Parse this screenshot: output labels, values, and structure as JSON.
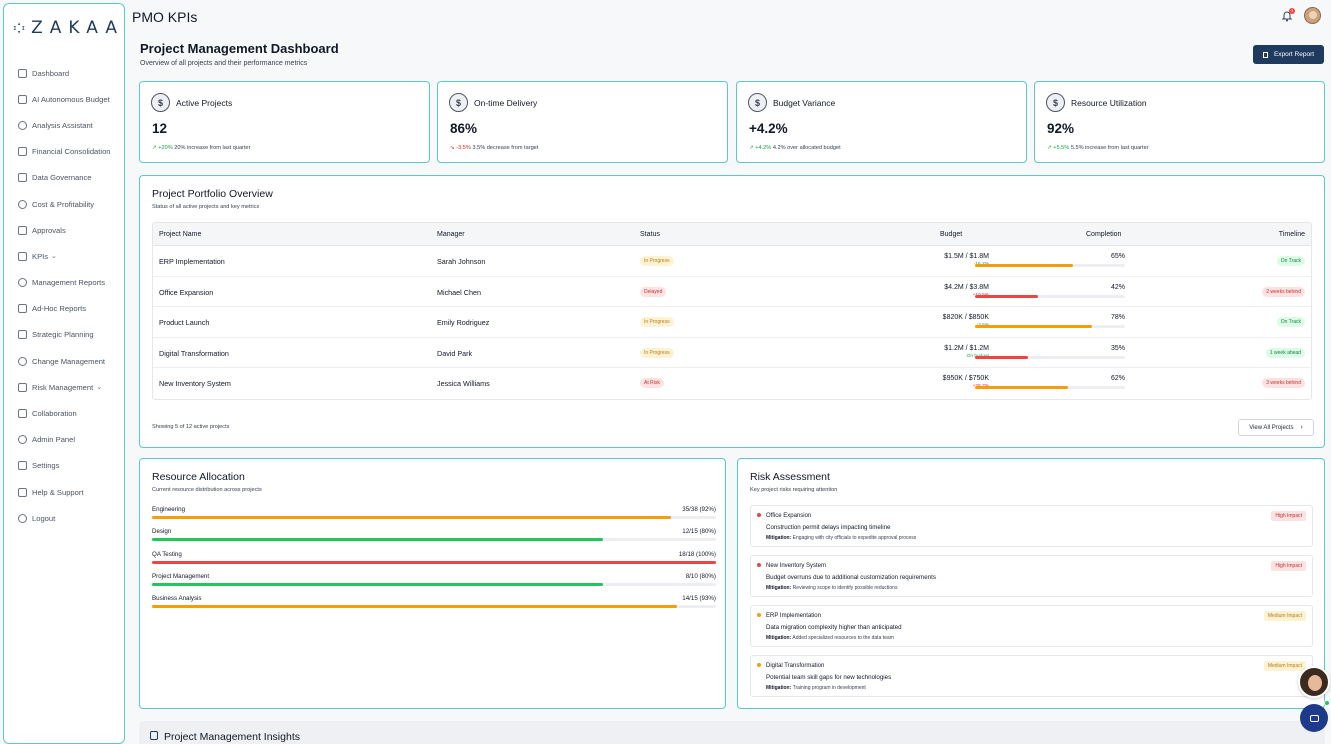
{
  "sidebar": {
    "brand": "ZAKAA",
    "items": [
      {
        "label": "Dashboard",
        "icon": "home-icon"
      },
      {
        "label": "AI Autonomous Budget",
        "icon": "robot-icon"
      },
      {
        "label": "Analysis Assistant",
        "icon": "assistant-icon"
      },
      {
        "label": "Financial Consolidation",
        "icon": "layers-icon"
      },
      {
        "label": "Data Governance",
        "icon": "database-icon"
      },
      {
        "label": "Cost & Profitability",
        "icon": "chart-icon"
      },
      {
        "label": "Approvals",
        "icon": "approval-icon"
      },
      {
        "label": "KPIs",
        "icon": "kpi-icon",
        "chevron": "⌄"
      },
      {
        "label": "Management Reports",
        "icon": "report-icon"
      },
      {
        "label": "Ad-Hoc Reports",
        "icon": "file-icon"
      },
      {
        "label": "Strategic Planning",
        "icon": "target-icon"
      },
      {
        "label": "Change Management",
        "icon": "users-icon"
      },
      {
        "label": "Risk Management",
        "icon": "shield-icon",
        "chevron": "⌄"
      },
      {
        "label": "Collaboration",
        "icon": "chat-icon"
      },
      {
        "label": "Admin Panel",
        "icon": "user-icon"
      },
      {
        "label": "Settings",
        "icon": "gear-icon"
      },
      {
        "label": "Help & Support",
        "icon": "help-icon"
      },
      {
        "label": "Logout",
        "icon": "logout-icon"
      }
    ]
  },
  "topbar": {
    "title": "PMO KPIs",
    "notification_count": "3"
  },
  "header": {
    "title": "Project Management Dashboard",
    "subtitle": "Overview of all projects and their performance metrics",
    "export_label": "Export Report"
  },
  "kpis": [
    {
      "title": "Active Projects",
      "value": "12",
      "arrow": "↗",
      "change": "+20%",
      "direction": "up",
      "note": "20% increase from last quarter",
      "glyph": "$"
    },
    {
      "title": "On-time Delivery",
      "value": "86%",
      "arrow": "↘",
      "change": "-3.5%",
      "direction": "down",
      "note": "3.5% decrease from target",
      "glyph": "$"
    },
    {
      "title": "Budget Variance",
      "value": "+4.2%",
      "arrow": "↗",
      "change": "+4.2%",
      "direction": "up",
      "note": "4.2% over allocated budget",
      "glyph": "$"
    },
    {
      "title": "Resource Utilization",
      "value": "92%",
      "arrow": "↗",
      "change": "+5.5%",
      "direction": "up",
      "note": "5.5% increase from last quarter",
      "glyph": "$"
    }
  ],
  "portfolio": {
    "title": "Project Portfolio Overview",
    "subtitle": "Status of all active projects and key metrics",
    "columns": [
      "Project Name",
      "Manager",
      "Status",
      "Budget",
      "Completion",
      "Timeline"
    ],
    "rows": [
      {
        "name": "ERP Implementation",
        "manager": "Sarah Johnson",
        "status": "In Progress",
        "status_type": "progress",
        "budget": "$1.5M / $1.8M",
        "variance": "-16.7%",
        "variance_type": "green",
        "completion": 65,
        "completion_label": "65%",
        "bar_color": "#f59e0b",
        "timeline": "On Track",
        "timeline_type": "ontrack"
      },
      {
        "name": "Office Expansion",
        "manager": "Michael Chen",
        "status": "Delayed",
        "status_type": "delayed",
        "budget": "$4.2M / $3.8M",
        "variance": "+10.5%",
        "variance_type": "red",
        "completion": 42,
        "completion_label": "42%",
        "bar_color": "#ef4444",
        "timeline": "2 weeks behind",
        "timeline_type": "behind"
      },
      {
        "name": "Product Launch",
        "manager": "Emily Rodriguez",
        "status": "In Progress",
        "status_type": "progress",
        "budget": "$820K / $850K",
        "variance": "-3.5%",
        "variance_type": "green",
        "completion": 78,
        "completion_label": "78%",
        "bar_color": "#f59e0b",
        "timeline": "On Track",
        "timeline_type": "ontrack"
      },
      {
        "name": "Digital Transformation",
        "manager": "David Park",
        "status": "In Progress",
        "status_type": "progress",
        "budget": "$1.2M / $1.2M",
        "variance": "On budget",
        "variance_type": "green",
        "completion": 35,
        "completion_label": "35%",
        "bar_color": "#ef4444",
        "timeline": "1 week ahead",
        "timeline_type": "ahead"
      },
      {
        "name": "New Inventory System",
        "manager": "Jessica Williams",
        "status": "At Risk",
        "status_type": "risk",
        "budget": "$950K / $750K",
        "variance": "+26.7%",
        "variance_type": "red",
        "completion": 62,
        "completion_label": "62%",
        "bar_color": "#f59e0b",
        "timeline": "3 weeks behind",
        "timeline_type": "behind"
      }
    ],
    "footer_text": "Showing 5 of 12 active projects",
    "view_all_label": "View All Projects",
    "view_all_chevron": "›"
  },
  "resources": {
    "title": "Resource Allocation",
    "subtitle": "Current resource distribution across projects",
    "items": [
      {
        "name": "Engineering",
        "value": "35/38 (92%)",
        "pct": 92,
        "color": "#f59e0b"
      },
      {
        "name": "Design",
        "value": "12/15 (80%)",
        "pct": 80,
        "color": "#22c55e"
      },
      {
        "name": "QA Testing",
        "value": "18/18 (100%)",
        "pct": 100,
        "color": "#ef4444"
      },
      {
        "name": "Project Management",
        "value": "8/10 (80%)",
        "pct": 80,
        "color": "#22c55e"
      },
      {
        "name": "Business Analysis",
        "value": "14/15 (93%)",
        "pct": 93,
        "color": "#f59e0b"
      }
    ]
  },
  "risk": {
    "title": "Risk Assessment",
    "subtitle": "Key project risks requiring attention",
    "mitigation_label": "Mitigation:",
    "items": [
      {
        "project": "Office Expansion",
        "desc": "Construction permit delays impacting timeline",
        "mitigation": "Engaging with city officials to expedite approval process",
        "impact": "High Impact",
        "level": "high",
        "dot": "#ef4444"
      },
      {
        "project": "New Inventory System",
        "desc": "Budget overruns due to additional customization requirements",
        "mitigation": "Reviewing scope to identify possible reductions",
        "impact": "High Impact",
        "level": "high",
        "dot": "#ef4444"
      },
      {
        "project": "ERP Implementation",
        "desc": "Data migration complexity higher than anticipated",
        "mitigation": "Added specialized resources to the data team",
        "impact": "Medium Impact",
        "level": "medium",
        "dot": "#f59e0b"
      },
      {
        "project": "Digital Transformation",
        "desc": "Potential team skill gaps for new technologies",
        "mitigation": "Training program in development",
        "impact": "Medium Impact",
        "level": "medium",
        "dot": "#f59e0b"
      }
    ]
  },
  "insights": {
    "title": "Project Management Insights"
  }
}
